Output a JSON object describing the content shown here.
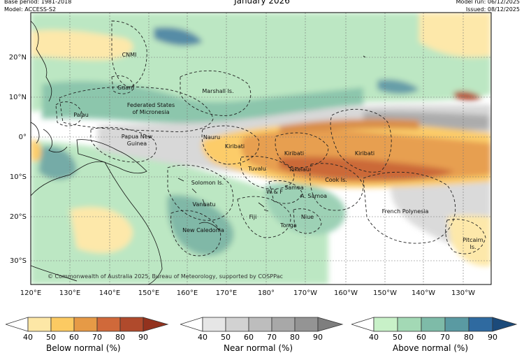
{
  "header": {
    "title": "January 2026",
    "base_period": "Base period: 1981-2018",
    "model": "Model: ACCESS-S2",
    "model_run": "Model run: 06/12/2025",
    "issued": "Issued: 08/12/2025"
  },
  "map": {
    "lat_labels": [
      "20°N",
      "10°N",
      "0°",
      "10°S",
      "20°S",
      "30°S"
    ],
    "lon_labels": [
      "120°E",
      "130°E",
      "140°E",
      "150°E",
      "160°E",
      "170°E",
      "180°",
      "170°W",
      "160°W",
      "150°W",
      "140°W",
      "130°W"
    ],
    "regions": [
      "CNMI",
      "Guam",
      "Marshall Is.",
      "Palau",
      "Federated States",
      "of Micronesia",
      "Nauru",
      "Papua New",
      "Guinea",
      "Kiribati",
      "Kiribati",
      "Kiribati",
      "Tuvalu",
      "Tokelau",
      "Cook Is.",
      "Solomon Is.",
      "W & F",
      "Samoa",
      "A. Samoa",
      "Vanuatu",
      "Fiji",
      "Niue",
      "Tonga",
      "New Caledonia",
      "French Polynesia",
      "Pitcairn",
      "Is."
    ],
    "copyright": "© Commonwealth of Australia 2025, Bureau of Meteorology, supported by COSPPac"
  },
  "colors": {
    "below": [
      "#fde7a6",
      "#fcca62",
      "#e69a46",
      "#d0693a",
      "#b04a2c",
      "#93321e"
    ],
    "near": [
      "#e6e6e6",
      "#d2d2d2",
      "#bdbdbd",
      "#a8a8a8",
      "#949494",
      "#7e7e7e"
    ],
    "above": [
      "#c8f1c8",
      "#a3d9b5",
      "#7ebba8",
      "#5a9aa2",
      "#2f6aa0",
      "#1b4a7a"
    ]
  },
  "legend": {
    "ticks": [
      "40",
      "50",
      "60",
      "70",
      "80",
      "90"
    ],
    "below_title": "Below normal (%)",
    "near_title": "Near normal (%)",
    "above_title": "Above normal (%)"
  }
}
